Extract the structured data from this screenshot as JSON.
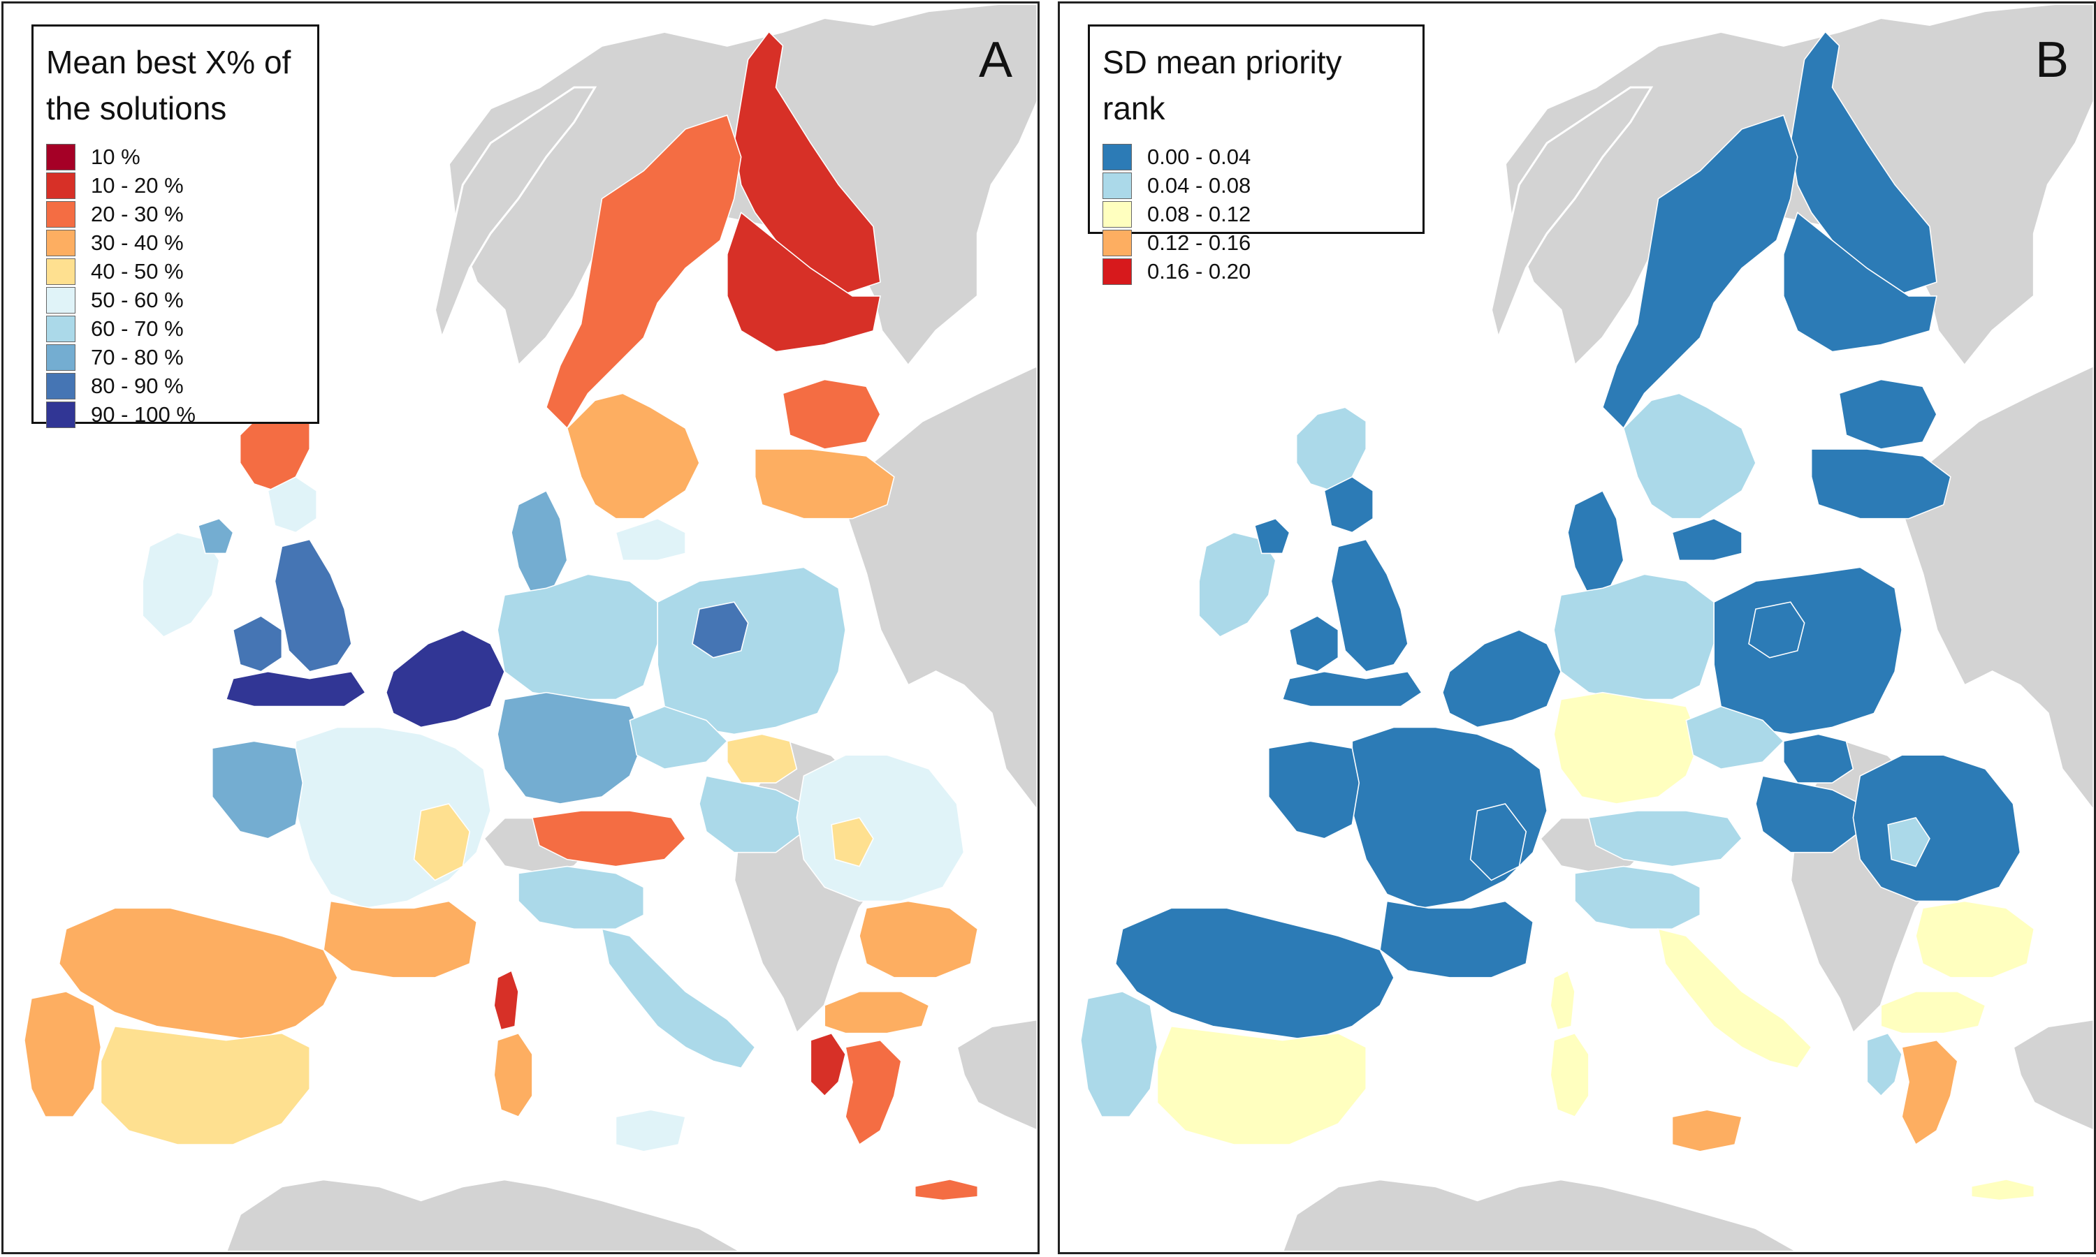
{
  "colors": {
    "background_land": "#d3d3d3",
    "sea": "#ffffff",
    "boundary": "#ffffff"
  },
  "panels": [
    {
      "letter": "A",
      "legend_title": "Mean best X% of\nthe solutions",
      "legend": [
        {
          "label": "10 %",
          "color": "#a50026"
        },
        {
          "label": "10 - 20 %",
          "color": "#d73027"
        },
        {
          "label": "20 - 30 %",
          "color": "#f46d43"
        },
        {
          "label": "30 - 40 %",
          "color": "#fdae61"
        },
        {
          "label": "40 - 50 %",
          "color": "#fee090"
        },
        {
          "label": "50 - 60 %",
          "color": "#e0f3f8"
        },
        {
          "label": "60 - 70 %",
          "color": "#abd9e9"
        },
        {
          "label": "70 - 80 %",
          "color": "#74add1"
        },
        {
          "label": "80 - 90 %",
          "color": "#4575b4"
        },
        {
          "label": "90 - 100 %",
          "color": "#313695"
        }
      ],
      "regions": [
        {
          "area": "finland-lapland",
          "cls": 1
        },
        {
          "area": "finland-south",
          "cls": 1
        },
        {
          "area": "sweden-north",
          "cls": 2
        },
        {
          "area": "sweden-south",
          "cls": 3
        },
        {
          "area": "scotland-highlands",
          "cls": 2
        },
        {
          "area": "scotland-south",
          "cls": 5
        },
        {
          "area": "ireland",
          "cls": 5
        },
        {
          "area": "northern-ireland",
          "cls": 7
        },
        {
          "area": "england",
          "cls": 8
        },
        {
          "area": "wales",
          "cls": 8
        },
        {
          "area": "england-south",
          "cls": 9
        },
        {
          "area": "benelux",
          "cls": 9
        },
        {
          "area": "denmark",
          "cls": 7
        },
        {
          "area": "baltics",
          "cls": 5
        },
        {
          "area": "estonia",
          "cls": 2
        },
        {
          "area": "latvia",
          "cls": 3
        },
        {
          "area": "germany-north",
          "cls": 6
        },
        {
          "area": "germany-south",
          "cls": 7
        },
        {
          "area": "poland",
          "cls": 6
        },
        {
          "area": "poland-central",
          "cls": 8
        },
        {
          "area": "czech",
          "cls": 6
        },
        {
          "area": "slovakia",
          "cls": 4
        },
        {
          "area": "hungary",
          "cls": 6
        },
        {
          "area": "romania",
          "cls": 5
        },
        {
          "area": "romania-south",
          "cls": 4
        },
        {
          "area": "bulgaria",
          "cls": 3
        },
        {
          "area": "greece-north",
          "cls": 3
        },
        {
          "area": "greece-west",
          "cls": 1
        },
        {
          "area": "greece-south",
          "cls": 2
        },
        {
          "area": "crete",
          "cls": 2
        },
        {
          "area": "france-north",
          "cls": 5
        },
        {
          "area": "france-west",
          "cls": 7
        },
        {
          "area": "france-east",
          "cls": 4
        },
        {
          "area": "france-south",
          "cls": 3
        },
        {
          "area": "corsica",
          "cls": 1
        },
        {
          "area": "austria",
          "cls": 2
        },
        {
          "area": "italy-north",
          "cls": 6
        },
        {
          "area": "italy-south",
          "cls": 6
        },
        {
          "area": "sardinia",
          "cls": 3
        },
        {
          "area": "sicily",
          "cls": 5
        },
        {
          "area": "spain-north",
          "cls": 3
        },
        {
          "area": "spain-south",
          "cls": 4
        },
        {
          "area": "portugal",
          "cls": 3
        }
      ]
    },
    {
      "letter": "B",
      "legend_title": "SD mean priority rank",
      "legend": [
        {
          "label": "0.00 - 0.04",
          "color": "#2c7bb6"
        },
        {
          "label": "0.04 - 0.08",
          "color": "#abd9e9"
        },
        {
          "label": "0.08 - 0.12",
          "color": "#ffffbf"
        },
        {
          "label": "0.12 - 0.16",
          "color": "#fdae61"
        },
        {
          "label": "0.16 - 0.20",
          "color": "#d7191c"
        }
      ],
      "regions": [
        {
          "area": "finland-lapland",
          "cls": 0
        },
        {
          "area": "finland-south",
          "cls": 0
        },
        {
          "area": "sweden-north",
          "cls": 0
        },
        {
          "area": "sweden-south",
          "cls": 1
        },
        {
          "area": "scotland-highlands",
          "cls": 1
        },
        {
          "area": "scotland-south",
          "cls": 0
        },
        {
          "area": "ireland",
          "cls": 1
        },
        {
          "area": "northern-ireland",
          "cls": 0
        },
        {
          "area": "england",
          "cls": 0
        },
        {
          "area": "wales",
          "cls": 0
        },
        {
          "area": "england-south",
          "cls": 0
        },
        {
          "area": "benelux",
          "cls": 0
        },
        {
          "area": "denmark",
          "cls": 0
        },
        {
          "area": "baltics",
          "cls": 0
        },
        {
          "area": "estonia",
          "cls": 0
        },
        {
          "area": "latvia",
          "cls": 0
        },
        {
          "area": "germany-north",
          "cls": 1
        },
        {
          "area": "germany-south",
          "cls": 2
        },
        {
          "area": "poland",
          "cls": 0
        },
        {
          "area": "poland-central",
          "cls": 0
        },
        {
          "area": "czech",
          "cls": 1
        },
        {
          "area": "slovakia",
          "cls": 0
        },
        {
          "area": "hungary",
          "cls": 0
        },
        {
          "area": "romania",
          "cls": 0
        },
        {
          "area": "romania-south",
          "cls": 1
        },
        {
          "area": "bulgaria",
          "cls": 2
        },
        {
          "area": "greece-north",
          "cls": 2
        },
        {
          "area": "greece-west",
          "cls": 1
        },
        {
          "area": "greece-south",
          "cls": 3
        },
        {
          "area": "crete",
          "cls": 2
        },
        {
          "area": "france-north",
          "cls": 0
        },
        {
          "area": "france-west",
          "cls": 0
        },
        {
          "area": "france-east",
          "cls": 0
        },
        {
          "area": "france-south",
          "cls": 0
        },
        {
          "area": "corsica",
          "cls": 2
        },
        {
          "area": "austria",
          "cls": 1
        },
        {
          "area": "italy-north",
          "cls": 1
        },
        {
          "area": "italy-south",
          "cls": 2
        },
        {
          "area": "sardinia",
          "cls": 2
        },
        {
          "area": "sicily",
          "cls": 3
        },
        {
          "area": "spain-north",
          "cls": 0
        },
        {
          "area": "spain-south",
          "cls": 2
        },
        {
          "area": "portugal",
          "cls": 1
        }
      ]
    }
  ]
}
